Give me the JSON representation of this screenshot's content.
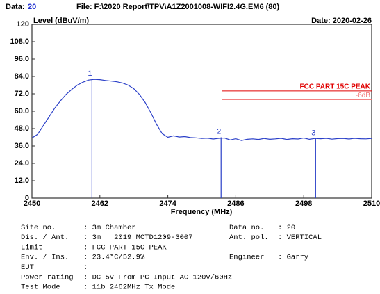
{
  "header": {
    "data_label": "Data:",
    "data_no": "20",
    "file": "File: F:\\2020 Report\\TPV\\A1Z2001008-WIFI2.4G.EM6  (80)",
    "date": "Date: 2020-02-26"
  },
  "chart_data": {
    "type": "line",
    "y_label": "Level (dBuV/m)",
    "x_label": "Frequency (MHz)",
    "xlim": [
      2450,
      2510
    ],
    "xticks": [
      2450,
      2462,
      2474,
      2486,
      2498,
      2510
    ],
    "ylim": [
      0,
      120
    ],
    "yticks": [
      0,
      {
        "value": 12,
        "label": "12.0"
      },
      {
        "value": 24,
        "label": "24.0"
      },
      {
        "value": 36,
        "label": "36.0"
      },
      {
        "value": 48,
        "label": "48.0"
      },
      {
        "value": 60,
        "label": "60.0"
      },
      {
        "value": 72,
        "label": "72.0"
      },
      {
        "value": 84,
        "label": "84.0"
      },
      {
        "value": 96,
        "label": "96.0"
      },
      {
        "value": 108,
        "label": "108.0"
      },
      120
    ],
    "grid": false,
    "series": [
      {
        "color": "#2a3fc8",
        "x": [
          2450,
          2451,
          2452,
          2453,
          2454,
          2455,
          2456,
          2457,
          2458,
          2459,
          2460,
          2461,
          2462,
          2463,
          2464,
          2465,
          2466,
          2467,
          2468,
          2469,
          2470,
          2471,
          2472,
          2473,
          2474,
          2475,
          2476,
          2477,
          2478,
          2479,
          2480,
          2481,
          2482,
          2483,
          2484,
          2485,
          2486,
          2487,
          2488,
          2489,
          2490,
          2491,
          2492,
          2493,
          2494,
          2495,
          2496,
          2497,
          2498,
          2499,
          2500,
          2501,
          2502,
          2503,
          2504,
          2505,
          2506,
          2507,
          2508,
          2509,
          2510
        ],
        "values": [
          41.5,
          44,
          50,
          56,
          62,
          67,
          71.5,
          75,
          78,
          80,
          81.5,
          82,
          81.8,
          81.2,
          80.8,
          80.3,
          79.5,
          78,
          75.5,
          71.5,
          66,
          59,
          51,
          44.5,
          42,
          43,
          42.2,
          42.5,
          41.8,
          41.6,
          41.2,
          41.4,
          40.8,
          41.3,
          41.5,
          40.2,
          41,
          39.8,
          40.6,
          40.9,
          40.5,
          41.2,
          40.6,
          40.9,
          41.3,
          40.5,
          41,
          40.8,
          41.5,
          40.6,
          41.2,
          41,
          41.3,
          40.7,
          41.1,
          41.2,
          40.8,
          41.3,
          41,
          40.9,
          41.2
        ]
      }
    ],
    "markers": [
      {
        "label": "1",
        "x": 2460.6,
        "value": 82
      },
      {
        "label": "2",
        "x": 2483.4,
        "value": 42
      },
      {
        "label": "3",
        "x": 2500.1,
        "value": 41
      }
    ],
    "limits": [
      {
        "name": "FCC PART 15C PEAK",
        "value": 74,
        "x": [
          2483.5,
          2510
        ],
        "color": "#e00000"
      },
      {
        "name": "-6dB",
        "value": 68,
        "x": [
          2483.5,
          2510
        ],
        "color": "#f07070"
      }
    ]
  },
  "info": [
    [
      "Site no.",
      ": 3m Chamber",
      "Data no.",
      ": 20"
    ],
    [
      "Dis. / Ant.",
      ": 3m   2019 MCTD1209-3007",
      "Ant. pol.",
      ": VERTICAL"
    ],
    [
      "Limit",
      ": FCC PART 15C PEAK"
    ],
    [
      "Env. / Ins.",
      ": 23.4*C/52.9%",
      "Engineer",
      ": Garry"
    ],
    [
      "EUT",
      ":"
    ],
    [
      "Power rating",
      ": DC 5V From PC Input AC 120V/60Hz"
    ],
    [
      "Test Mode",
      ": 11b 2462MHz Tx Mode"
    ]
  ]
}
